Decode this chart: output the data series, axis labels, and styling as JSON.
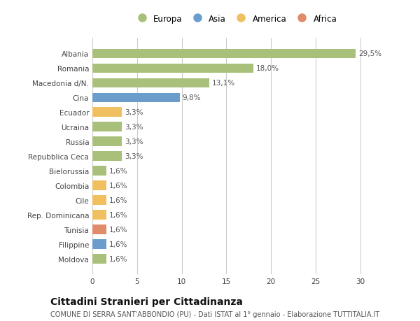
{
  "countries": [
    "Albania",
    "Romania",
    "Macedonia d/N.",
    "Cina",
    "Ecuador",
    "Ucraina",
    "Russia",
    "Repubblica Ceca",
    "Bielorussia",
    "Colombia",
    "Cile",
    "Rep. Dominicana",
    "Tunisia",
    "Filippine",
    "Moldova"
  ],
  "values": [
    29.5,
    18.0,
    13.1,
    9.8,
    3.3,
    3.3,
    3.3,
    3.3,
    1.6,
    1.6,
    1.6,
    1.6,
    1.6,
    1.6,
    1.6
  ],
  "labels": [
    "29,5%",
    "18,0%",
    "13,1%",
    "9,8%",
    "3,3%",
    "3,3%",
    "3,3%",
    "3,3%",
    "1,6%",
    "1,6%",
    "1,6%",
    "1,6%",
    "1,6%",
    "1,6%",
    "1,6%"
  ],
  "continents": [
    "Europa",
    "Europa",
    "Europa",
    "Asia",
    "America",
    "Europa",
    "Europa",
    "Europa",
    "Europa",
    "America",
    "America",
    "America",
    "Africa",
    "Asia",
    "Europa"
  ],
  "continent_colors": {
    "Europa": "#a8c07a",
    "Asia": "#6b9dcc",
    "America": "#f0c060",
    "Africa": "#e08c6a"
  },
  "legend_order": [
    "Europa",
    "Asia",
    "America",
    "Africa"
  ],
  "title": "Cittadini Stranieri per Cittadinanza",
  "subtitle": "COMUNE DI SERRA SANT'ABBONDIO (PU) - Dati ISTAT al 1° gennaio - Elaborazione TUTTITALIA.IT",
  "xlim": [
    0,
    32
  ],
  "xticks": [
    0,
    5,
    10,
    15,
    20,
    25,
    30
  ],
  "background_color": "#ffffff",
  "bar_height": 0.65,
  "label_fontsize": 7.5,
  "tick_fontsize": 7.5,
  "title_fontsize": 10,
  "subtitle_fontsize": 7
}
